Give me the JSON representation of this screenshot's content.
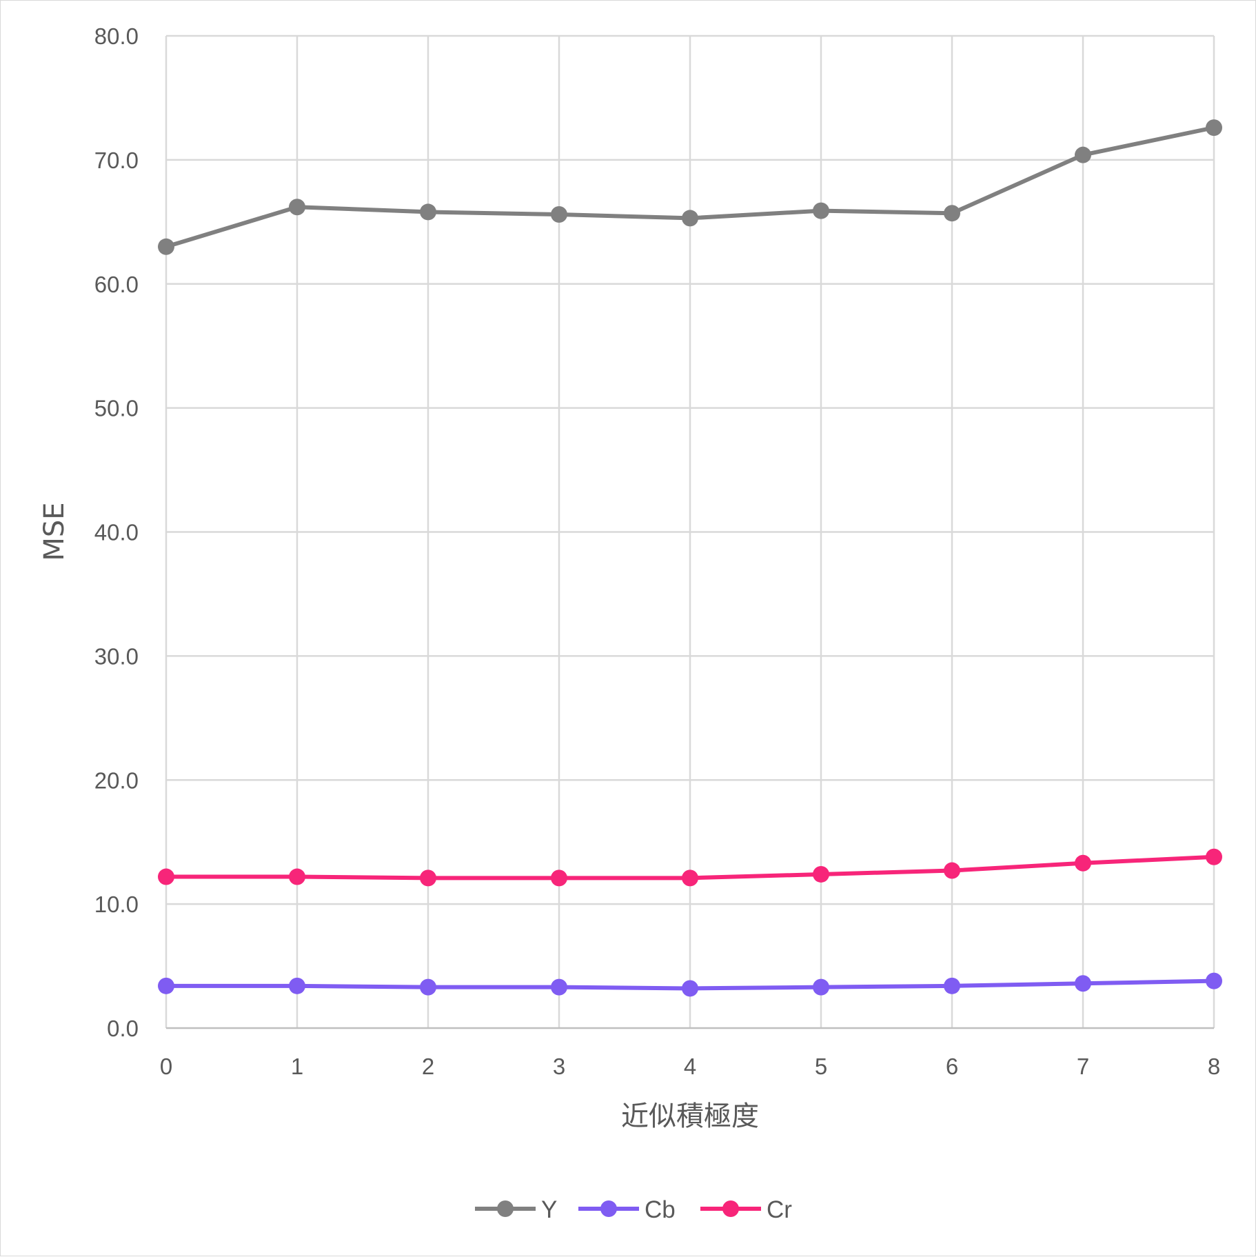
{
  "chart_data": {
    "type": "line",
    "title": "",
    "xlabel": "近似積極度",
    "ylabel": "MSE",
    "x": [
      0,
      1,
      2,
      3,
      4,
      5,
      6,
      7,
      8
    ],
    "x_tick_labels": [
      "0",
      "1",
      "2",
      "3",
      "4",
      "5",
      "6",
      "7",
      "8"
    ],
    "ylim": [
      0,
      80
    ],
    "y_tick_labels": [
      "0.0",
      "10.0",
      "20.0",
      "30.0",
      "40.0",
      "50.0",
      "60.0",
      "70.0",
      "80.0"
    ],
    "grid": true,
    "legend_position": "bottom",
    "series": [
      {
        "name": "Y",
        "color": "#808080",
        "marker": "circle",
        "values": [
          63.0,
          66.2,
          65.8,
          65.6,
          65.3,
          65.9,
          65.7,
          70.4,
          72.6
        ]
      },
      {
        "name": "Cb",
        "color": "#7f5cf2",
        "marker": "circle",
        "values": [
          3.4,
          3.4,
          3.3,
          3.3,
          3.2,
          3.3,
          3.4,
          3.6,
          3.8
        ]
      },
      {
        "name": "Cr",
        "color": "#f72579",
        "marker": "circle",
        "values": [
          12.2,
          12.2,
          12.1,
          12.1,
          12.1,
          12.4,
          12.7,
          13.3,
          13.8
        ]
      }
    ]
  }
}
